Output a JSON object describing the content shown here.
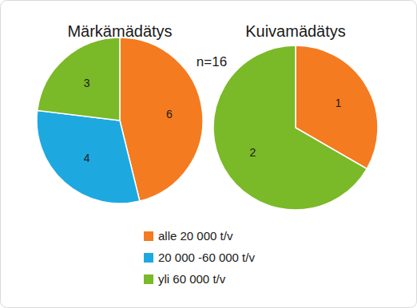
{
  "chart_data": {
    "type": "pie",
    "categories": [
      "alle 20 000 t/v",
      "20 000 -60 000 t/v",
      "yli 60 000 t/v"
    ],
    "colors": [
      "#f47b20",
      "#1da9e0",
      "#7ab928"
    ],
    "series": [
      {
        "name": "Märkämädätys",
        "values": [
          6,
          4,
          3
        ]
      },
      {
        "name": "Kuivamädätys",
        "values": [
          1,
          null,
          2
        ]
      }
    ],
    "annotations": [
      "n=16"
    ],
    "data_labels": true,
    "legend": "bottom"
  }
}
